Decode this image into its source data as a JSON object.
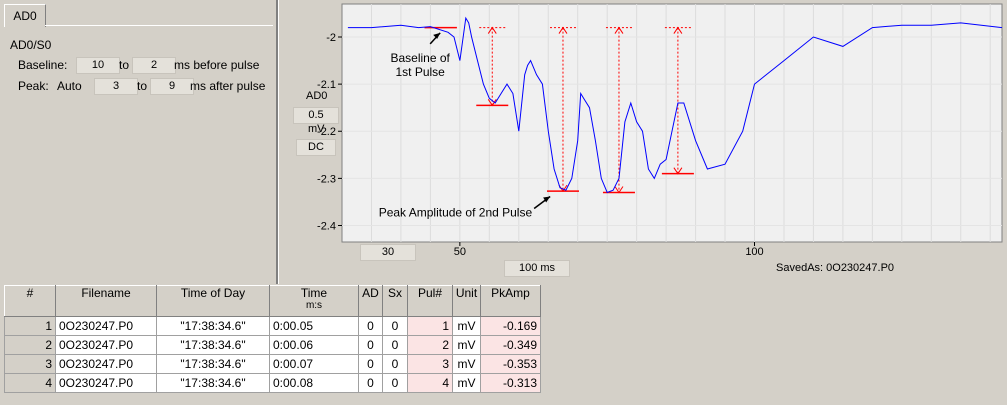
{
  "panel": {
    "tab": "AD0",
    "channel": "AD0/S0",
    "baseline": {
      "label": "Baseline:",
      "from": "10",
      "to_word": "to",
      "to": "2",
      "suffix": "ms before pulse"
    },
    "peak": {
      "label": "Peak:",
      "mode": "Auto",
      "from": "3",
      "to_word": "to",
      "to": "9",
      "suffix": "ms after pulse"
    }
  },
  "axis_box": {
    "channel": "AD0",
    "scale": "0.5",
    "unit": "mV",
    "coupling": "DC"
  },
  "footer": {
    "x_pos": "30",
    "time_span": "100 ms",
    "saved_as": "SavedAs: 0O230247.P0"
  },
  "colors": {
    "trace": "#0000ff",
    "marker": "#ff0000",
    "plot_bg": "#f0f0f0"
  },
  "chart_data": {
    "type": "line",
    "xlim": [
      30,
      142
    ],
    "ylim": [
      -2.435,
      -1.93
    ],
    "y_ticks": [
      -2,
      -2.1,
      -2.2,
      -2.3,
      -2.4
    ],
    "x_ticks": [
      50,
      100
    ],
    "series": [
      {
        "x": [
          31,
          35,
          40,
          43,
          45,
          48,
          49,
          50,
          51,
          51.5,
          52,
          53,
          54,
          55,
          56,
          57,
          58,
          59,
          60,
          61,
          61.5,
          62,
          63,
          64,
          65,
          66,
          67,
          68,
          69,
          70,
          70.5,
          71,
          72,
          73,
          74,
          75,
          76,
          77,
          78,
          79,
          80,
          81,
          82,
          83,
          84,
          85,
          86,
          87,
          88,
          90,
          92,
          95,
          98,
          100,
          105,
          110,
          115,
          120,
          125,
          130,
          135,
          142
        ],
        "y": [
          -1.98,
          -1.98,
          -1.975,
          -1.98,
          -1.978,
          -1.99,
          -2.0,
          -2.05,
          -1.96,
          -1.97,
          -2.0,
          -2.05,
          -2.1,
          -2.13,
          -2.14,
          -2.12,
          -2.1,
          -2.12,
          -2.2,
          -2.08,
          -2.06,
          -2.05,
          -2.08,
          -2.1,
          -2.2,
          -2.28,
          -2.32,
          -2.325,
          -2.3,
          -2.22,
          -2.12,
          -2.13,
          -2.15,
          -2.22,
          -2.3,
          -2.33,
          -2.325,
          -2.3,
          -2.18,
          -2.14,
          -2.18,
          -2.2,
          -2.28,
          -2.3,
          -2.27,
          -2.26,
          -2.2,
          -2.14,
          -2.14,
          -2.22,
          -2.28,
          -2.27,
          -2.2,
          -2.1,
          -2.05,
          -2.0,
          -2.02,
          -1.98,
          -1.975,
          -1.975,
          -1.97,
          -1.98
        ]
      }
    ],
    "peaks": [
      {
        "x": 55.5,
        "baseline": -1.98,
        "peak": -2.145
      },
      {
        "x": 67.5,
        "baseline": -1.98,
        "peak": -2.327
      },
      {
        "x": 77,
        "baseline": -1.98,
        "peak": -2.33
      },
      {
        "x": 87,
        "baseline": -1.98,
        "peak": -2.29
      }
    ],
    "baseline_segment": {
      "x1": 44,
      "x2": 49.5,
      "y": -1.98
    },
    "annotations": [
      {
        "text_lines": [
          "Baseline of",
          "1st Pulse"
        ],
        "target_x": 47,
        "target_y": -1.985
      },
      {
        "text_lines": [
          "Peak Amplitude of 2nd Pulse"
        ],
        "target_x": 66,
        "target_y": -2.33
      }
    ]
  },
  "table": {
    "headers": [
      {
        "label": "#",
        "sub": ""
      },
      {
        "label": "Filename",
        "sub": ""
      },
      {
        "label": "Time of Day",
        "sub": ""
      },
      {
        "label": "Time",
        "sub": "m:s"
      },
      {
        "label": "AD",
        "sub": ""
      },
      {
        "label": "Sx",
        "sub": ""
      },
      {
        "label": "Pul#",
        "sub": ""
      },
      {
        "label": "Unit",
        "sub": ""
      },
      {
        "label": "PkAmp",
        "sub": ""
      }
    ],
    "rows": [
      {
        "n": "1",
        "file": "0O230247.P0",
        "tod": "\"17:38:34.6\"",
        "time": "0:00.05",
        "ad": "0",
        "sx": "0",
        "pul": "1",
        "unit": "mV",
        "pk": "-0.169"
      },
      {
        "n": "2",
        "file": "0O230247.P0",
        "tod": "\"17:38:34.6\"",
        "time": "0:00.06",
        "ad": "0",
        "sx": "0",
        "pul": "2",
        "unit": "mV",
        "pk": "-0.349"
      },
      {
        "n": "3",
        "file": "0O230247.P0",
        "tod": "\"17:38:34.6\"",
        "time": "0:00.07",
        "ad": "0",
        "sx": "0",
        "pul": "3",
        "unit": "mV",
        "pk": "-0.353"
      },
      {
        "n": "4",
        "file": "0O230247.P0",
        "tod": "\"17:38:34.6\"",
        "time": "0:00.08",
        "ad": "0",
        "sx": "0",
        "pul": "4",
        "unit": "mV",
        "pk": "-0.313"
      }
    ]
  }
}
